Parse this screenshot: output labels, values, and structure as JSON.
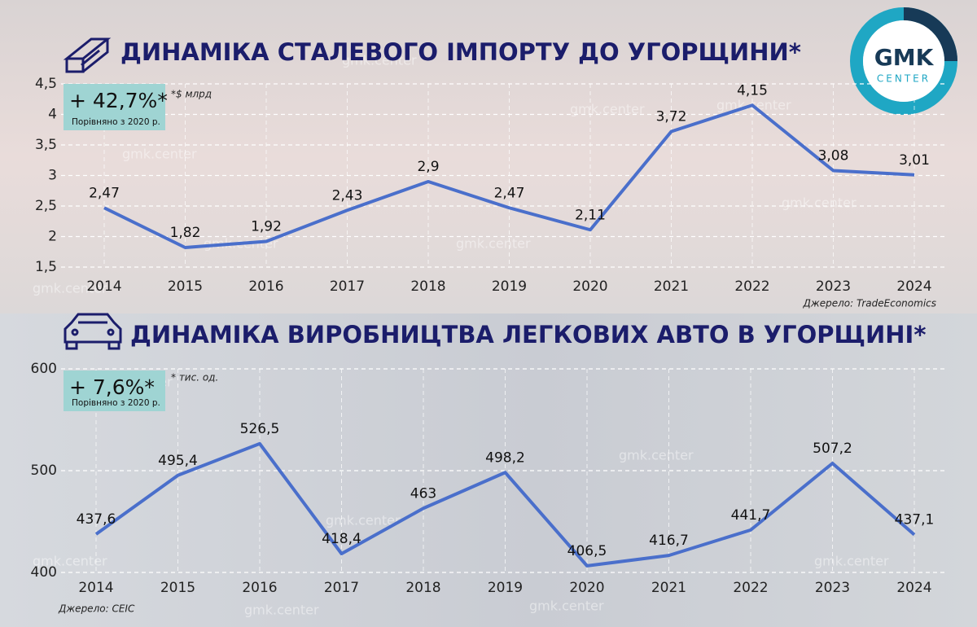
{
  "logo": {
    "top": "GMK",
    "bottom": "CENTER"
  },
  "watermark": "gmk.center",
  "chart_data": [
    {
      "type": "line",
      "title": "ДИНАМІКА СТАЛЕВОГО ІМПОРТУ ДО УГОРЩИНИ*",
      "badge": "+ 42,7%*",
      "badge_note": "Порівняно з 2020 р.",
      "unit_note": "*$ млрд",
      "source": "Джерело: TradeEconomics",
      "categories": [
        "2014",
        "2015",
        "2016",
        "2017",
        "2018",
        "2019",
        "2020",
        "2021",
        "2022",
        "2023",
        "2024"
      ],
      "values": [
        2.47,
        1.82,
        1.92,
        2.43,
        2.9,
        2.47,
        2.11,
        3.72,
        4.15,
        3.08,
        3.01
      ],
      "value_labels": [
        "2,47",
        "1,82",
        "1,92",
        "2,43",
        "2,9",
        "2,47",
        "2,11",
        "3,72",
        "4,15",
        "3,08",
        "3,01"
      ],
      "color": "#4a6fcb",
      "ylim": [
        1.5,
        4.5
      ],
      "yticks": [
        {
          "value": 1.5,
          "label": "1,5"
        },
        2,
        {
          "value": 2.5,
          "label": "2,5"
        },
        3,
        {
          "value": 3.5,
          "label": "3,5"
        },
        4,
        {
          "value": 4.5,
          "label": "4,5"
        }
      ],
      "grid": true
    },
    {
      "type": "line",
      "title": "ДИНАМІКА ВИРОБНИЦТВА ЛЕГКОВИХ АВТО В УГОРЩИНІ*",
      "badge": "+ 7,6%*",
      "badge_note": "Порівняно з 2020 р.",
      "unit_note": "* тис. од.",
      "source": "Джерело: CEIC",
      "categories": [
        "2014",
        "2015",
        "2016",
        "2017",
        "2018",
        "2019",
        "2020",
        "2021",
        "2022",
        "2023",
        "2024"
      ],
      "values": [
        437.6,
        495.4,
        526.5,
        418.4,
        463,
        498.2,
        406.5,
        416.7,
        441.7,
        507.2,
        437.1
      ],
      "value_labels": [
        "437,6",
        "495,4",
        "526,5",
        "418,4",
        "463",
        "498,2",
        "406,5",
        "416,7",
        "441,7",
        "507,2",
        "437,1"
      ],
      "color": "#4a6fcb",
      "ylim": [
        400,
        600
      ],
      "yticks": [
        400,
        500,
        600
      ],
      "grid": true
    }
  ]
}
